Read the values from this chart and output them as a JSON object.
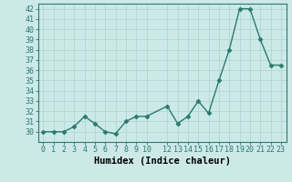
{
  "x": [
    0,
    1,
    2,
    3,
    4,
    5,
    6,
    7,
    8,
    9,
    10,
    12,
    13,
    14,
    15,
    16,
    17,
    18,
    19,
    20,
    21,
    22,
    23
  ],
  "y": [
    30,
    30,
    30,
    30.5,
    31.5,
    30.8,
    30,
    29.8,
    31,
    31.5,
    31.5,
    32.5,
    30.8,
    31.5,
    33,
    31.8,
    35,
    38,
    42,
    42,
    39,
    36.5,
    36.5
  ],
  "line_color": "#2a7a6e",
  "marker": "D",
  "marker_size": 2.5,
  "bg_color": "#cce9e7",
  "grid_color": "#aad4d0",
  "xlabel": "Humidex (Indice chaleur)",
  "xlim": [
    -0.5,
    23.5
  ],
  "ylim": [
    29.0,
    42.5
  ],
  "yticks": [
    30,
    31,
    32,
    33,
    34,
    35,
    36,
    37,
    38,
    39,
    40,
    41,
    42
  ],
  "xticks": [
    0,
    1,
    2,
    3,
    4,
    5,
    6,
    7,
    8,
    9,
    10,
    12,
    13,
    14,
    15,
    16,
    17,
    18,
    19,
    20,
    21,
    22,
    23
  ],
  "tick_fontsize": 6,
  "xlabel_fontsize": 7.5,
  "line_width": 1.0
}
